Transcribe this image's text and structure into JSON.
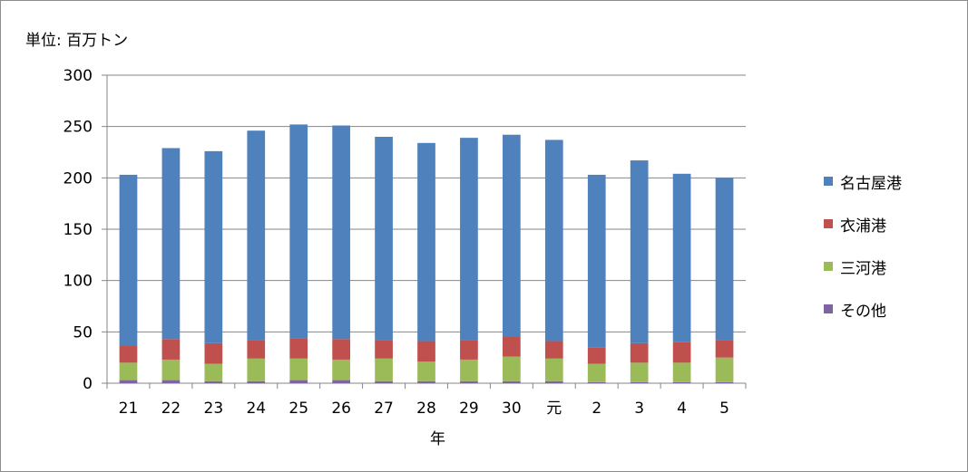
{
  "chart_data": {
    "type": "bar",
    "stacked": true,
    "unit_label": "単位: 百万トン",
    "xlabel": "年",
    "categories": [
      "21",
      "22",
      "23",
      "24",
      "25",
      "26",
      "27",
      "28",
      "29",
      "30",
      "元",
      "2",
      "3",
      "4",
      "5"
    ],
    "ylim": [
      0,
      300
    ],
    "yticks": [
      0,
      50,
      100,
      150,
      200,
      250,
      300
    ],
    "grid": true,
    "legend_position": "right",
    "series": [
      {
        "name": "その他",
        "color": "#8064a2",
        "values": [
          3,
          3,
          2,
          2,
          3,
          3,
          2,
          2,
          2,
          2,
          2,
          1,
          1,
          1,
          1
        ]
      },
      {
        "name": "三河港",
        "color": "#9bbb59",
        "values": [
          17,
          20,
          17,
          22,
          21,
          20,
          22,
          19,
          21,
          24,
          22,
          18,
          19,
          19,
          24
        ]
      },
      {
        "name": "衣浦港",
        "color": "#c0504d",
        "values": [
          17,
          20,
          20,
          18,
          20,
          20,
          18,
          20,
          19,
          19,
          17,
          16,
          19,
          20,
          17
        ]
      },
      {
        "name": "名古屋港",
        "color": "#4f81bd",
        "values": [
          166,
          186,
          187,
          204,
          208,
          208,
          198,
          193,
          197,
          197,
          196,
          168,
          178,
          164,
          158
        ]
      }
    ]
  }
}
